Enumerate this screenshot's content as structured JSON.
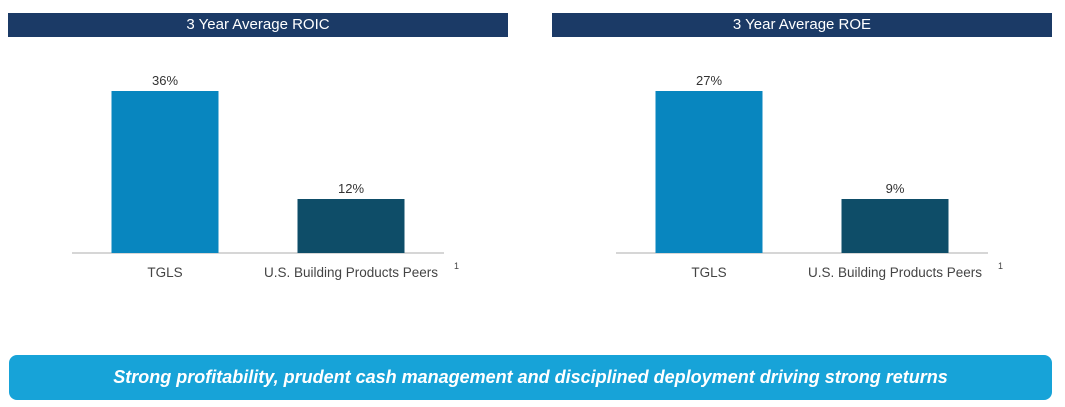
{
  "colors": {
    "header_bg": "#1b3a66",
    "tgls": "#0886bf",
    "peers": "#0e4d68",
    "baseline": "#d6d6d6",
    "banner_bg": "#17a3d8"
  },
  "charts": [
    {
      "title": "3 Year Average ROIC"
    },
    {
      "title": "3 Year Average ROE"
    }
  ],
  "chart_data": [
    {
      "type": "bar",
      "title": "3 Year Average ROIC",
      "categories": [
        "TGLS",
        "U.S. Building Products Peers"
      ],
      "footnote_marker": "1",
      "values": [
        36,
        12
      ],
      "data_labels": [
        "36%",
        "12%"
      ],
      "ylim": [
        0,
        40
      ],
      "grid": false
    },
    {
      "type": "bar",
      "title": "3 Year Average ROE",
      "categories": [
        "TGLS",
        "U.S. Building Products Peers"
      ],
      "footnote_marker": "1",
      "values": [
        27,
        9
      ],
      "data_labels": [
        "27%",
        "9%"
      ],
      "ylim": [
        0,
        30
      ],
      "grid": false
    }
  ],
  "banner": {
    "text": "Strong profitability, prudent cash management and disciplined deployment driving strong returns"
  }
}
